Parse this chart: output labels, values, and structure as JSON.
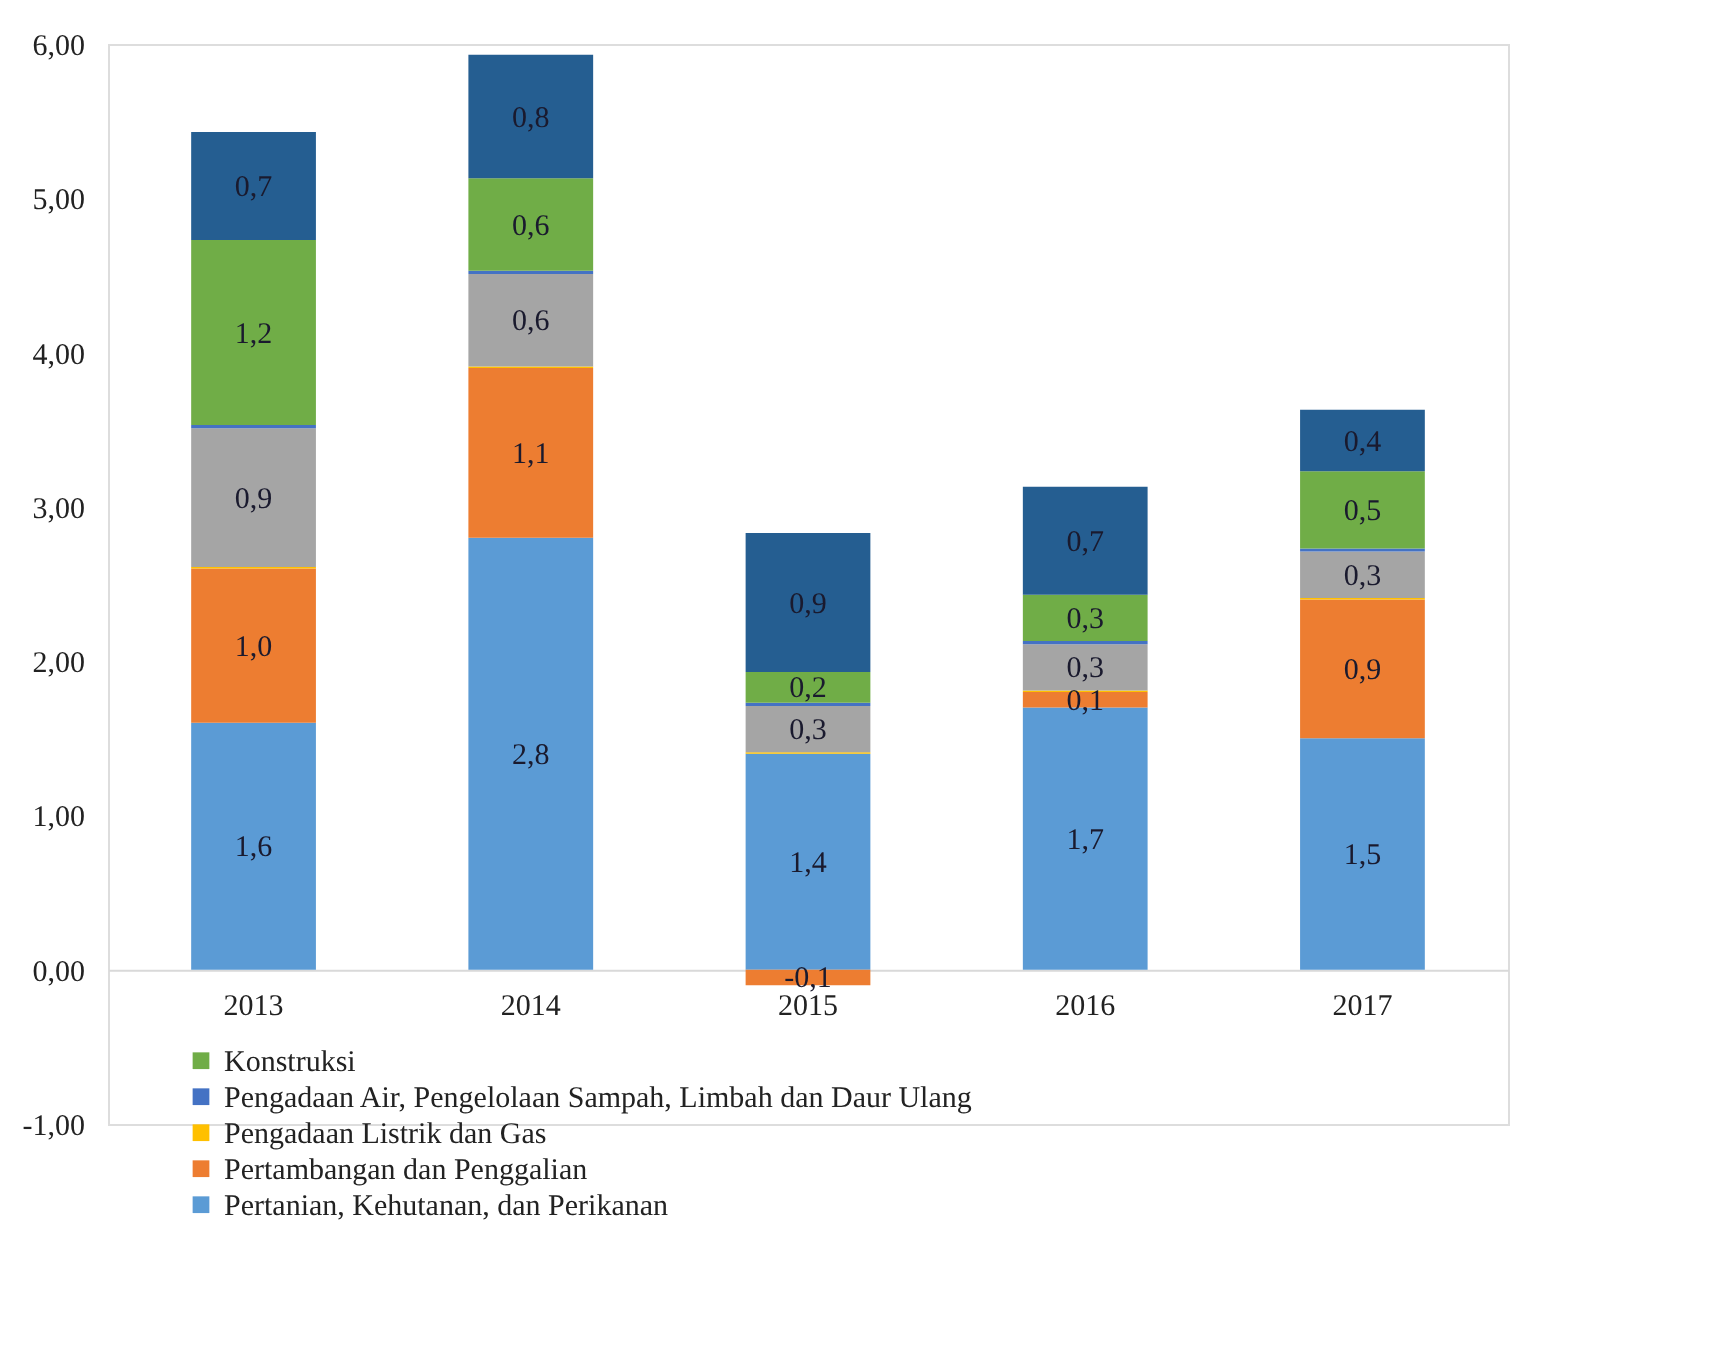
{
  "chart_data": {
    "type": "bar",
    "stacked": true,
    "categories": [
      "2013",
      "2014",
      "2015",
      "2016",
      "2017"
    ],
    "series": [
      {
        "name": "Pertanian, Kehutanan, dan Perikanan",
        "color": "#5b9bd5",
        "values": [
          1.6,
          2.8,
          1.4,
          1.7,
          1.5
        ],
        "value_labels": [
          "1,6",
          "2,8",
          "1,4",
          "1,7",
          "1,5"
        ]
      },
      {
        "name": "Pertambangan dan Penggalian",
        "color": "#ed7d31",
        "values": [
          1.0,
          1.1,
          -0.1,
          0.1,
          0.9
        ],
        "value_labels": [
          "1,0",
          "1,1",
          "-0,1",
          "0,1",
          "0,9"
        ]
      },
      {
        "name": "Pengadaan Listrik dan Gas",
        "color": "#ffc000",
        "values": [
          0.01,
          0.01,
          0.01,
          0.01,
          0.01
        ],
        "value_labels": [
          null,
          null,
          null,
          null,
          null
        ]
      },
      {
        "color": "#a5a5a5",
        "values": [
          0.9,
          0.6,
          0.3,
          0.3,
          0.3
        ],
        "value_labels": [
          "0,9",
          "0,6",
          "0,3",
          "0,3",
          "0,3"
        ]
      },
      {
        "name": "Pengadaan Air, Pengelolaan Sampah, Limbah dan Daur Ulang",
        "color": "#4472c4",
        "values": [
          0.02,
          0.02,
          0.02,
          0.02,
          0.02
        ],
        "value_labels": [
          null,
          null,
          null,
          null,
          null
        ]
      },
      {
        "name": "Konstruksi",
        "color": "#70ad47",
        "values": [
          1.2,
          0.6,
          0.2,
          0.3,
          0.5
        ],
        "value_labels": [
          "1,2",
          "0,6",
          "0,2",
          "0,3",
          "0,5"
        ]
      },
      {
        "color": "#255e91",
        "values": [
          0.7,
          0.8,
          0.9,
          0.7,
          0.4
        ],
        "value_labels": [
          "0,7",
          "0,8",
          "0,9",
          "0,7",
          "0,4"
        ]
      }
    ],
    "ylim": [
      -1,
      6
    ],
    "yticks": [
      {
        "value": -1,
        "label": "-1,00"
      },
      {
        "value": 0,
        "label": "0,00"
      },
      {
        "value": 1,
        "label": "1,00"
      },
      {
        "value": 2,
        "label": "2,00"
      },
      {
        "value": 3,
        "label": "3,00"
      },
      {
        "value": 4,
        "label": "4,00"
      },
      {
        "value": 5,
        "label": "5,00"
      },
      {
        "value": 6,
        "label": "6,00"
      }
    ],
    "grid": false,
    "legend": "bottom left"
  }
}
